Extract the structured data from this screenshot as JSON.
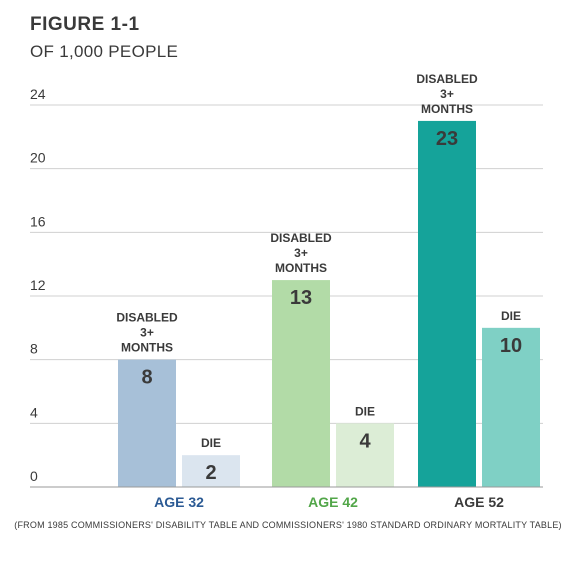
{
  "figure": {
    "title": "FIGURE 1-1",
    "subtitle": "OF 1,000 PEOPLE",
    "note": "(FROM 1985 COMMISSIONERS' DISABILITY TABLE AND COMMISSIONERS' 1980 STANDARD ORDINARY MORTALITY TABLE)"
  },
  "chart_data": {
    "type": "bar",
    "title": "",
    "xlabel": "",
    "ylabel": "",
    "ylim": [
      0,
      24
    ],
    "yticks": [
      "0",
      "4",
      "8",
      "12",
      "16",
      "20",
      "24"
    ],
    "grid": true,
    "categories": [
      "AGE 32",
      "AGE 42",
      "AGE 52"
    ],
    "category_colors": [
      "#2b5a94",
      "#52a649",
      "#3a3a3a"
    ],
    "series": [
      {
        "name": "DISABLED 3+ MONTHS",
        "label_lines": [
          "DISABLED",
          "3+",
          "MONTHS"
        ],
        "values": [
          8,
          13,
          23
        ],
        "colors": [
          "#a7c0d8",
          "#b2dba7",
          "#15a39a"
        ]
      },
      {
        "name": "DIE",
        "label_lines": [
          "DIE"
        ],
        "values": [
          2,
          4,
          10
        ],
        "colors": [
          "#dbe5ef",
          "#dcedd6",
          "#7fd0c5"
        ]
      }
    ]
  }
}
